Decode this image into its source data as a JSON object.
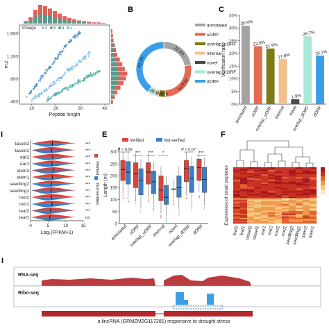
{
  "colors": {
    "red": "#b5262a",
    "red_mid": "#d9453c",
    "blue": "#3b80c4",
    "teal": "#39a89a",
    "grey_bar": "#a3a3a3",
    "orange": "#e46a52",
    "olive": "#7d7d18",
    "peach": "#f4c08b",
    "dark": "#4a4a4a",
    "mint": "#a8e8d8",
    "dodger": "#3b9ee8"
  },
  "panels": {
    "a": {
      "label": ""
    },
    "b": {
      "label": "B"
    },
    "c": {
      "label": "C"
    },
    "d": {
      "label": "I"
    },
    "e": {
      "label": "E"
    },
    "f": {
      "label": "F"
    },
    "g": {
      "label": "I"
    }
  },
  "chart_data": [
    {
      "id": "A",
      "type": "scatter",
      "xlabel": "Peptide length",
      "ylabel": "m.z",
      "xticks": [
        "10",
        "20",
        "30",
        "40"
      ],
      "yticks": [
        "400",
        "800",
        "1,200",
        "1,600"
      ],
      "xlim": [
        5,
        42
      ],
      "ylim": [
        350,
        1750
      ],
      "legend_title": "Charge",
      "legend_items": [
        "2",
        "3",
        "4",
        "+"
      ],
      "series": [
        {
          "name": "2",
          "x": [
            8,
            10,
            12,
            14,
            16,
            18,
            20,
            22,
            24,
            26,
            28,
            30
          ],
          "y": [
            480,
            580,
            700,
            820,
            920,
            1040,
            1150,
            1260,
            1380,
            1480,
            1560,
            1620
          ]
        },
        {
          "name": "3",
          "x": [
            10,
            12,
            14,
            16,
            18,
            20,
            22,
            24,
            26,
            28,
            30,
            32,
            34
          ],
          "y": [
            420,
            480,
            540,
            600,
            680,
            760,
            820,
            900,
            980,
            1040,
            1120,
            1180,
            1260
          ]
        },
        {
          "name": "4",
          "x": [
            16,
            18,
            20,
            22,
            24,
            26,
            28,
            30,
            32,
            34,
            36,
            38
          ],
          "y": [
            420,
            470,
            520,
            570,
            620,
            660,
            720,
            760,
            800,
            860,
            900,
            940
          ]
        }
      ]
    },
    {
      "id": "B",
      "type": "pie",
      "categories": [
        "annotated",
        "uORF",
        "overlap_uORF",
        "internal",
        "novel",
        "overlap_dORF",
        "dORF"
      ],
      "values": [
        22.3,
        26.67,
        4.25,
        2.15,
        0.13,
        4.3,
        40.2
      ],
      "value_labels": [
        "22.3%",
        "26.67%",
        "4.25%",
        "2.15%",
        "",
        "4.30%",
        "40.2%"
      ],
      "colors": [
        "#a3a3a3",
        "#e46a52",
        "#7d7d18",
        "#f4c08b",
        "#4a4a4a",
        "#a8e8d8",
        "#3b9ee8"
      ]
    },
    {
      "id": "C",
      "type": "bar",
      "categories": [
        "annotated",
        "uORF",
        "overlap_uORF",
        "internal",
        "novel",
        "overlap_dORF",
        "dORF"
      ],
      "values": [
        30.9,
        22.8,
        21.9,
        17.8,
        1.9,
        26.7,
        19.1
      ],
      "value_labels": [
        "30.9%",
        "22.8%",
        "21.9%",
        "17.8%",
        "1.9%",
        "26.7%",
        "19.1%"
      ],
      "ylabel": "Verification ratio",
      "yticks": [
        "0%",
        "5%",
        "10%",
        "15%",
        "20%",
        "25%",
        "30%",
        "35%"
      ],
      "ylim": [
        0,
        35
      ]
    },
    {
      "id": "D",
      "type": "violin",
      "categories": [
        "tassel2",
        "tassel1",
        "ear2",
        "ear1",
        "stem2",
        "stem1",
        "seedling2",
        "seedling1",
        "root2",
        "root1",
        "leaf2",
        "leaf1"
      ],
      "xlabel": "Log₂(FPKM+1)",
      "xticks": [
        "0",
        "5",
        "10",
        "15"
      ],
      "xlim": [
        0,
        15
      ],
      "legend": [
        "Verified",
        "Not-verified"
      ],
      "significance": [
        "***",
        "***",
        "***",
        "***",
        "***",
        "***",
        "***",
        "***",
        "***",
        "***",
        "***",
        "ns"
      ],
      "verified_median": [
        6.2,
        6.0,
        6.3,
        6.1,
        6.4,
        6.2,
        5.9,
        5.8,
        6.0,
        6.1,
        5.7,
        5.5
      ],
      "notverified_median": [
        4.5,
        4.4,
        4.7,
        4.5,
        4.6,
        4.5,
        4.3,
        4.2,
        4.5,
        4.4,
        4.6,
        5.3
      ]
    },
    {
      "id": "E",
      "type": "box",
      "categories": [
        "annotated",
        "uORF",
        "overlap_uORF",
        "internal",
        "novel",
        "overlap_dORF",
        "dORF"
      ],
      "series_names": [
        "Verified",
        "Not-verified"
      ],
      "ylabel": "Length (nt)",
      "yticks": [
        "0",
        "50",
        "100",
        "150",
        "200",
        "250",
        "300"
      ],
      "ylim": [
        0,
        320
      ],
      "annotations": [
        "P < 0.09",
        "***",
        "***",
        "*",
        "P < 0.07",
        "***"
      ],
      "verified": [
        {
          "q1": 180,
          "median": 225,
          "q3": 265
        },
        {
          "q1": 150,
          "median": 210,
          "q3": 255
        },
        {
          "q1": 165,
          "median": 215,
          "q3": 255
        },
        {
          "q1": 95,
          "median": 140,
          "q3": 200
        },
        {
          "q1": 145,
          "median": 145,
          "q3": 145
        },
        {
          "q1": 175,
          "median": 230,
          "q3": 265
        },
        {
          "q1": 180,
          "median": 235,
          "q3": 270
        }
      ],
      "notverified": [
        {
          "q1": 165,
          "median": 215,
          "q3": 260
        },
        {
          "q1": 120,
          "median": 180,
          "q3": 230
        },
        {
          "q1": 125,
          "median": 175,
          "q3": 220
        },
        {
          "q1": 80,
          "median": 110,
          "q3": 160
        },
        {
          "q1": 110,
          "median": 150,
          "q3": 200
        },
        {
          "q1": 130,
          "median": 190,
          "q3": 240
        },
        {
          "q1": 130,
          "median": 185,
          "q3": 235
        }
      ]
    },
    {
      "id": "F",
      "type": "heatmap",
      "ylabel": "Expression of small peptides",
      "columns": [
        "leaf2",
        "leaf1",
        "tassel2",
        "tassel1",
        "ear1",
        "ear2",
        "root2",
        "root1",
        "seedling2",
        "seedling1",
        "stem2",
        "stem1"
      ]
    },
    {
      "id": "G",
      "type": "area",
      "tracks": [
        "RNA-seq",
        "Ribo-seq"
      ],
      "caption": "a lincRNA (GRMZM2G117281) responsive to drought stress"
    }
  ]
}
